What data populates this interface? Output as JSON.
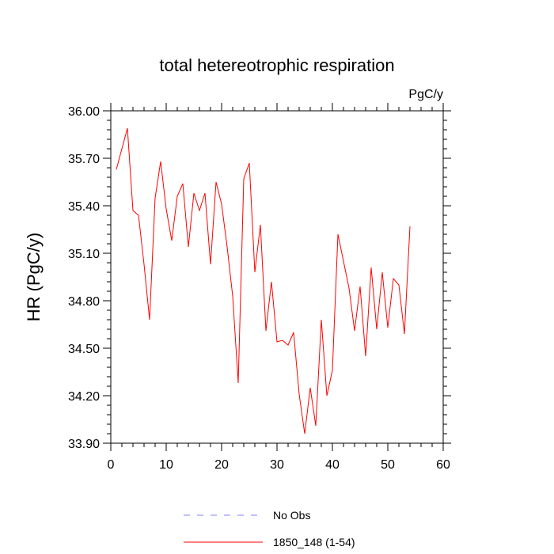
{
  "chart_data": {
    "type": "line",
    "title": "total hetereotrophic respiration",
    "units": "PgC/y",
    "xlabel": "",
    "ylabel": "HR  (PgC/y)",
    "xlim": [
      0,
      60
    ],
    "ylim": [
      33.9,
      36.0
    ],
    "xticks": [
      0,
      10,
      20,
      30,
      40,
      50,
      60
    ],
    "xtick_labels": [
      "0",
      "10",
      "20",
      "30",
      "40",
      "50",
      "60"
    ],
    "yticks": [
      33.9,
      34.2,
      34.5,
      34.8,
      35.1,
      35.4,
      35.7,
      36.0
    ],
    "ytick_labels": [
      "33.90",
      "34.20",
      "34.50",
      "34.80",
      "35.10",
      "35.40",
      "35.70",
      "36.00"
    ],
    "grid": false,
    "legend_position": "bottom",
    "series": [
      {
        "name": "1850_148 (1-54)",
        "color": "#ff0000",
        "dash": "solid",
        "x": [
          1,
          2,
          3,
          4,
          5,
          6,
          7,
          8,
          9,
          10,
          11,
          12,
          13,
          14,
          15,
          16,
          17,
          18,
          19,
          20,
          21,
          22,
          23,
          24,
          25,
          26,
          27,
          28,
          29,
          30,
          31,
          32,
          33,
          34,
          35,
          36,
          37,
          38,
          39,
          40,
          41,
          42,
          43,
          44,
          45,
          46,
          47,
          48,
          49,
          50,
          51,
          52,
          53,
          54
        ],
        "y": [
          35.63,
          35.76,
          35.89,
          35.37,
          35.34,
          35.03,
          34.68,
          35.45,
          35.68,
          35.38,
          35.18,
          35.46,
          35.54,
          35.14,
          35.48,
          35.37,
          35.48,
          35.03,
          35.55,
          35.41,
          35.14,
          34.83,
          34.28,
          35.57,
          35.67,
          34.98,
          35.28,
          34.61,
          34.92,
          34.54,
          34.55,
          34.52,
          34.6,
          34.21,
          33.96,
          34.25,
          34.01,
          34.68,
          34.2,
          34.36,
          35.22,
          35.05,
          34.88,
          34.61,
          34.89,
          34.45,
          35.01,
          34.62,
          34.98,
          34.63,
          34.94,
          34.9,
          34.59,
          35.27
        ]
      }
    ],
    "legend": [
      {
        "label": "No Obs",
        "color": "#8080ff",
        "dash": "dashed"
      },
      {
        "label": "1850_148 (1-54)",
        "color": "#ff0000",
        "dash": "solid"
      }
    ]
  }
}
